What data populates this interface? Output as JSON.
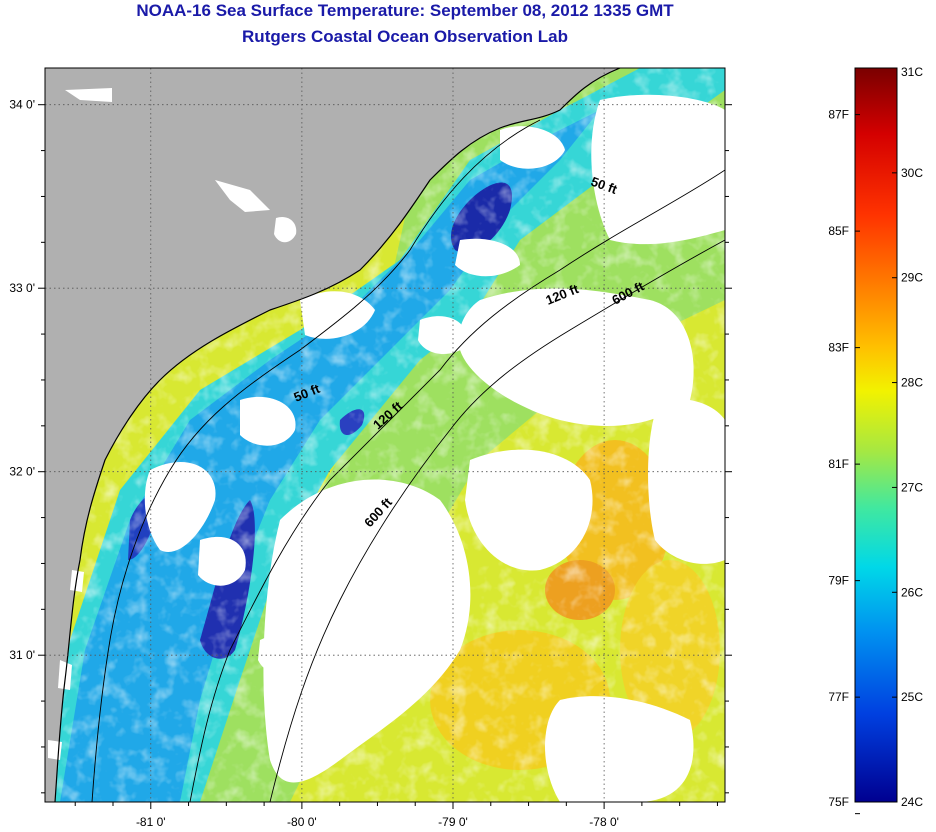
{
  "title": "NOAA-16 Sea Surface Temperature:  September 08, 2012 1335 GMT",
  "subtitle": "Rutgers Coastal Ocean Observation Lab",
  "map": {
    "lon_range": [
      -81.7,
      -77.2
    ],
    "lat_range": [
      30.2,
      34.2
    ],
    "lat_ticks": [
      {
        "value": 34,
        "label": "34 0'"
      },
      {
        "value": 33,
        "label": "33 0'"
      },
      {
        "value": 32,
        "label": "32 0'"
      },
      {
        "value": 31,
        "label": "31 0'"
      }
    ],
    "lon_ticks": [
      {
        "value": -81,
        "label": "-81 0'"
      },
      {
        "value": -80,
        "label": "-80 0'"
      },
      {
        "value": -79,
        "label": "-79 0'"
      },
      {
        "value": -78,
        "label": "-78 0'"
      }
    ],
    "grid": "dotted",
    "land_color": "#b0b0b0",
    "cloud_mask_color": "#ffffff",
    "isobath_labels": [
      {
        "text": "50 ft"
      },
      {
        "text": "120 ft"
      },
      {
        "text": "600 ft"
      },
      {
        "text": "50 ft"
      },
      {
        "text": "120 ft"
      },
      {
        "text": "600 ft"
      }
    ]
  },
  "colorbar": {
    "celsius_labels": [
      "31C",
      "30C",
      "29C",
      "28C",
      "27C",
      "26C",
      "25C",
      "24C"
    ],
    "fahrenheit_labels": [
      "87F",
      "85F",
      "83F",
      "81F",
      "79F",
      "77F",
      "75F"
    ],
    "colors": [
      "#7a0000",
      "#d40000",
      "#ff3300",
      "#ff8800",
      "#ffc000",
      "#f2f200",
      "#a8e840",
      "#40e8a0",
      "#00d8e8",
      "#0090f0",
      "#0040e0",
      "#000090"
    ]
  }
}
